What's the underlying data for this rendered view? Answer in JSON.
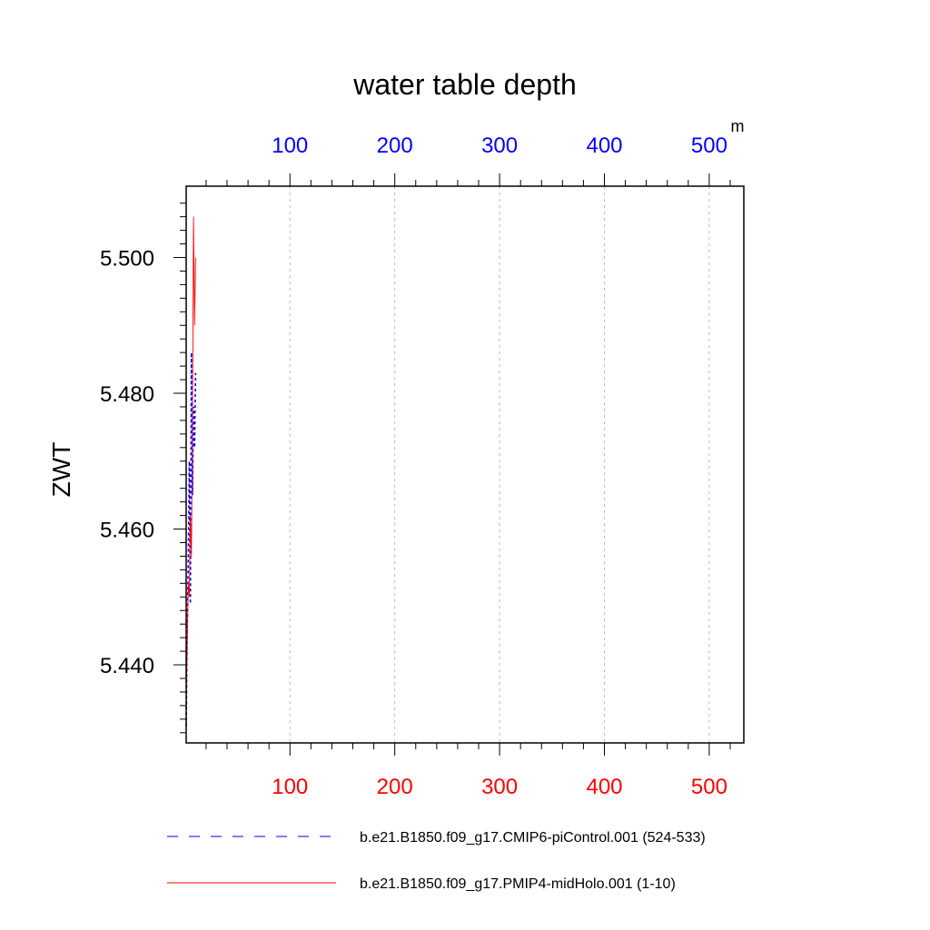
{
  "chart_data": {
    "type": "line",
    "title": "water table depth",
    "ylabel": "ZWT",
    "top_axis_unit": "m",
    "xlim": [
      1,
      533
    ],
    "ylim": [
      5.4285,
      5.5105
    ],
    "x_ticks": [
      100,
      200,
      300,
      400,
      500
    ],
    "x_tick_labels": [
      "100",
      "200",
      "300",
      "400",
      "500"
    ],
    "y_ticks": [
      5.44,
      5.46,
      5.48,
      5.5
    ],
    "y_tick_labels": [
      "5.440",
      "5.460",
      "5.480",
      "5.500"
    ],
    "grid": "vertical dashed",
    "legend_position": "bottom",
    "colors": {
      "bottom_axis": "#ff0000",
      "top_axis": "#0000ff"
    },
    "series": [
      {
        "name": "b.e21.B1850.f09_g17.CMIP6-piControl.001 (524-533)",
        "color": "#0000ff",
        "dash": "dashed",
        "x": [
          1,
          2,
          3,
          4,
          5,
          6,
          7,
          8,
          9,
          10
        ],
        "y": [
          5.431,
          5.445,
          5.455,
          5.47,
          5.449,
          5.486,
          5.465,
          5.478,
          5.472,
          5.483
        ]
      },
      {
        "name": "b.e21.B1850.f09_g17.PMIP4-midHolo.001 (1-10)",
        "color": "#ff0000",
        "dash": "solid",
        "x": [
          1,
          2,
          3,
          4,
          5,
          6,
          7,
          8,
          9,
          10
        ],
        "y": [
          5.435,
          5.443,
          5.452,
          5.45,
          5.462,
          5.456,
          5.476,
          5.506,
          5.49,
          5.5
        ]
      }
    ]
  }
}
